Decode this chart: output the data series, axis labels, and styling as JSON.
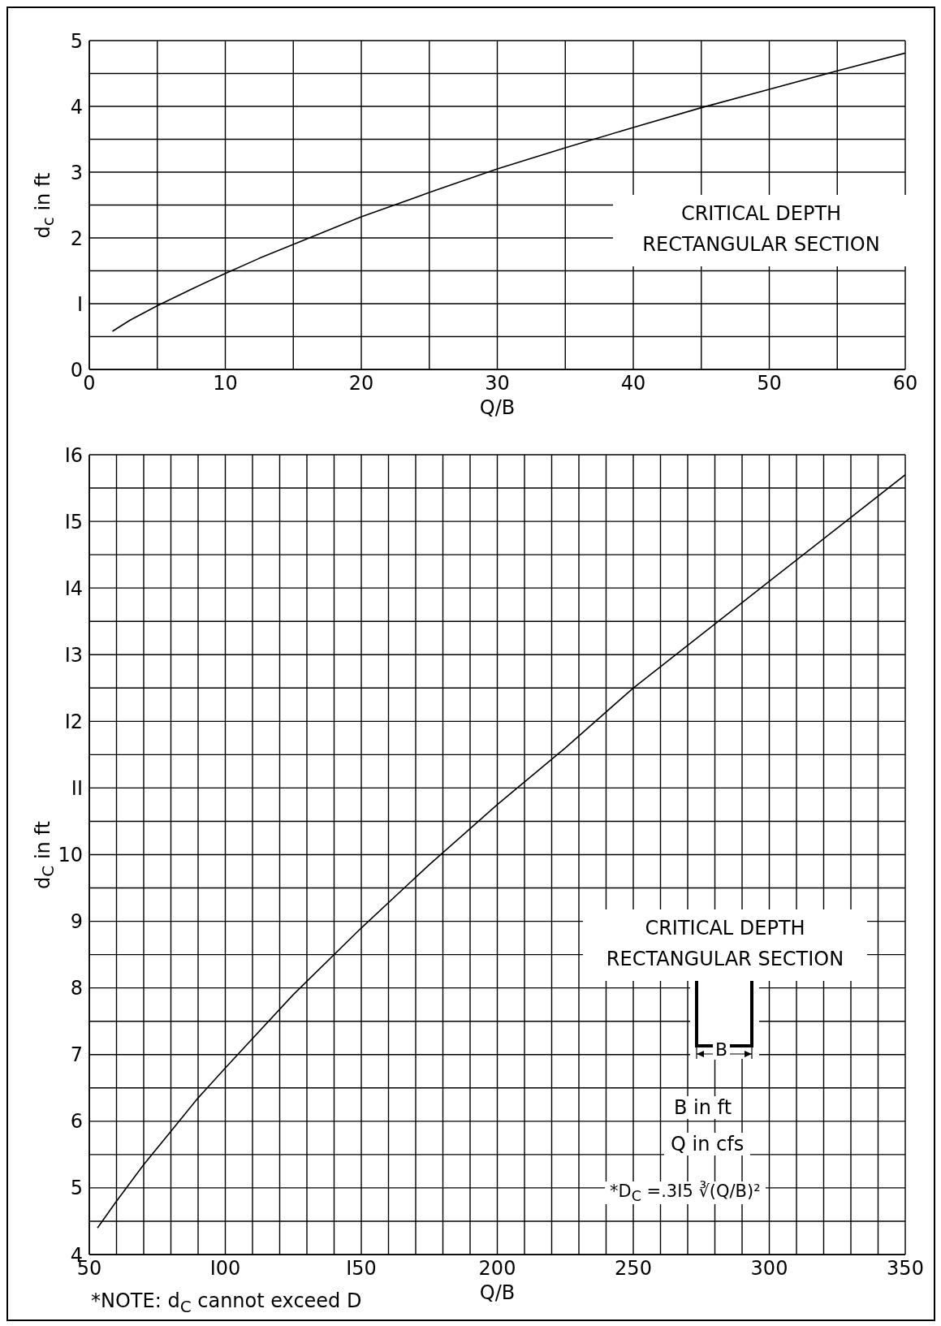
{
  "chart_data": [
    {
      "type": "line",
      "xlabel": "Q/B",
      "ylabel": "d$_{c}$ in ft",
      "grid": true,
      "marker": "none",
      "line_style": "solid",
      "xlim": [
        0,
        60
      ],
      "xticks": [
        0,
        {
          "value": 5,
          "label": null
        },
        10,
        {
          "value": 15,
          "label": null
        },
        20,
        {
          "value": 25,
          "label": null
        },
        30,
        {
          "value": 35,
          "label": null
        },
        40,
        {
          "value": 45,
          "label": null
        },
        50,
        {
          "value": 55,
          "label": null
        },
        60
      ],
      "ylim": [
        0,
        5
      ],
      "yticks": [
        0,
        {
          "value": 0.5,
          "label": null
        },
        {
          "value": 1,
          "label": "I"
        },
        {
          "value": 1.5,
          "label": null
        },
        2,
        {
          "value": 2.5,
          "label": null
        },
        3,
        {
          "value": 3.5,
          "label": null
        },
        4,
        {
          "value": 4.5,
          "label": null
        },
        5
      ],
      "annotations": [
        "CRITICAL DEPTH",
        "RECTANGULAR SECTION"
      ],
      "series": [
        {
          "color": "#000000",
          "x": [
            1.7,
            3,
            5,
            7.5,
            10,
            12.5,
            15,
            20,
            25,
            30,
            35,
            40,
            45,
            50,
            55,
            60
          ],
          "values": [
            0.58,
            0.75,
            0.97,
            1.22,
            1.46,
            1.69,
            1.9,
            2.32,
            2.69,
            3.05,
            3.37,
            3.68,
            3.98,
            4.26,
            4.54,
            4.81
          ]
        }
      ]
    },
    {
      "type": "line",
      "xlabel": "Q/B",
      "ylabel": "d$_{C}$ in ft",
      "grid": true,
      "marker": "none",
      "line_style": "solid",
      "xlim": [
        50,
        350
      ],
      "xticks": [
        50,
        {
          "value": 60,
          "label": null
        },
        {
          "value": 70,
          "label": null
        },
        {
          "value": 80,
          "label": null
        },
        {
          "value": 90,
          "label": null
        },
        {
          "value": 100,
          "label": "I00"
        },
        {
          "value": 110,
          "label": null
        },
        {
          "value": 120,
          "label": null
        },
        {
          "value": 130,
          "label": null
        },
        {
          "value": 140,
          "label": null
        },
        {
          "value": 150,
          "label": "I50"
        },
        {
          "value": 160,
          "label": null
        },
        {
          "value": 170,
          "label": null
        },
        {
          "value": 180,
          "label": null
        },
        {
          "value": 190,
          "label": null
        },
        200,
        {
          "value": 210,
          "label": null
        },
        {
          "value": 220,
          "label": null
        },
        {
          "value": 230,
          "label": null
        },
        {
          "value": 240,
          "label": null
        },
        250,
        {
          "value": 260,
          "label": null
        },
        {
          "value": 270,
          "label": null
        },
        {
          "value": 280,
          "label": null
        },
        {
          "value": 290,
          "label": null
        },
        300,
        {
          "value": 310,
          "label": null
        },
        {
          "value": 320,
          "label": null
        },
        {
          "value": 330,
          "label": null
        },
        {
          "value": 340,
          "label": null
        },
        350
      ],
      "ylim": [
        4,
        16
      ],
      "yticks": [
        4,
        {
          "value": 4.5,
          "label": null
        },
        5,
        {
          "value": 5.5,
          "label": null
        },
        6,
        {
          "value": 6.5,
          "label": null
        },
        7,
        {
          "value": 7.5,
          "label": null
        },
        8,
        {
          "value": 8.5,
          "label": null
        },
        9,
        {
          "value": 9.5,
          "label": null
        },
        10,
        {
          "value": 10.5,
          "label": null
        },
        {
          "value": 11,
          "label": "II"
        },
        {
          "value": 11.5,
          "label": null
        },
        {
          "value": 12,
          "label": "I2"
        },
        {
          "value": 12.5,
          "label": null
        },
        {
          "value": 13,
          "label": "I3"
        },
        {
          "value": 13.5,
          "label": null
        },
        {
          "value": 14,
          "label": "I4"
        },
        {
          "value": 14.5,
          "label": null
        },
        {
          "value": 15,
          "label": "I5"
        },
        {
          "value": 15.5,
          "label": null
        },
        {
          "value": 16,
          "label": "I6"
        }
      ],
      "annotations": [
        "CRITICAL DEPTH",
        "RECTANGULAR SECTION",
        "B",
        "B in ft",
        "Q in cfs",
        "*D$_{C}$ =.3I5 ∛(Q/B)²",
        "*NOTE: d$_{C}$ cannot exceed D"
      ],
      "series": [
        {
          "color": "#000000",
          "x": [
            53,
            60,
            70,
            80,
            90,
            100,
            125,
            150,
            175,
            200,
            225,
            250,
            275,
            300,
            325,
            350
          ],
          "values": [
            4.4,
            4.8,
            5.35,
            5.85,
            6.35,
            6.8,
            7.9,
            8.9,
            9.85,
            10.75,
            11.6,
            12.5,
            13.3,
            14.1,
            14.9,
            15.7
          ]
        }
      ]
    }
  ]
}
